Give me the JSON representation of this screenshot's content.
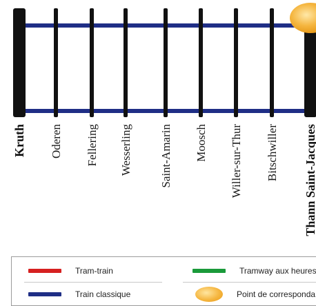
{
  "line": {
    "track_color": "#1f2e86",
    "tie_color": "#111111",
    "correspondence_color": "#f2b03a",
    "stations": [
      {
        "name": "Kruth",
        "terminus": true
      },
      {
        "name": "Oderen",
        "terminus": false
      },
      {
        "name": "Fellering",
        "terminus": false
      },
      {
        "name": "Wesserling",
        "terminus": false
      },
      {
        "name": "Saint-Amarin",
        "terminus": false
      },
      {
        "name": "Moosch",
        "terminus": false
      },
      {
        "name": "Willer-sur-Thur",
        "terminus": false
      },
      {
        "name": "Bitschwiller",
        "terminus": false
      },
      {
        "name": "Thann Saint-Jacques",
        "terminus": true,
        "correspondence": true
      }
    ]
  },
  "legend": {
    "items": [
      {
        "label": "Tram-train",
        "color": "#d62020",
        "kind": "line"
      },
      {
        "label": "Tramway aux heures d",
        "color": "#1a9a3a",
        "kind": "line"
      },
      {
        "label": "Train classique",
        "color": "#1f2e86",
        "kind": "line"
      },
      {
        "label": "Point de corresponda",
        "color": "#f2b03a",
        "kind": "dot"
      }
    ]
  }
}
